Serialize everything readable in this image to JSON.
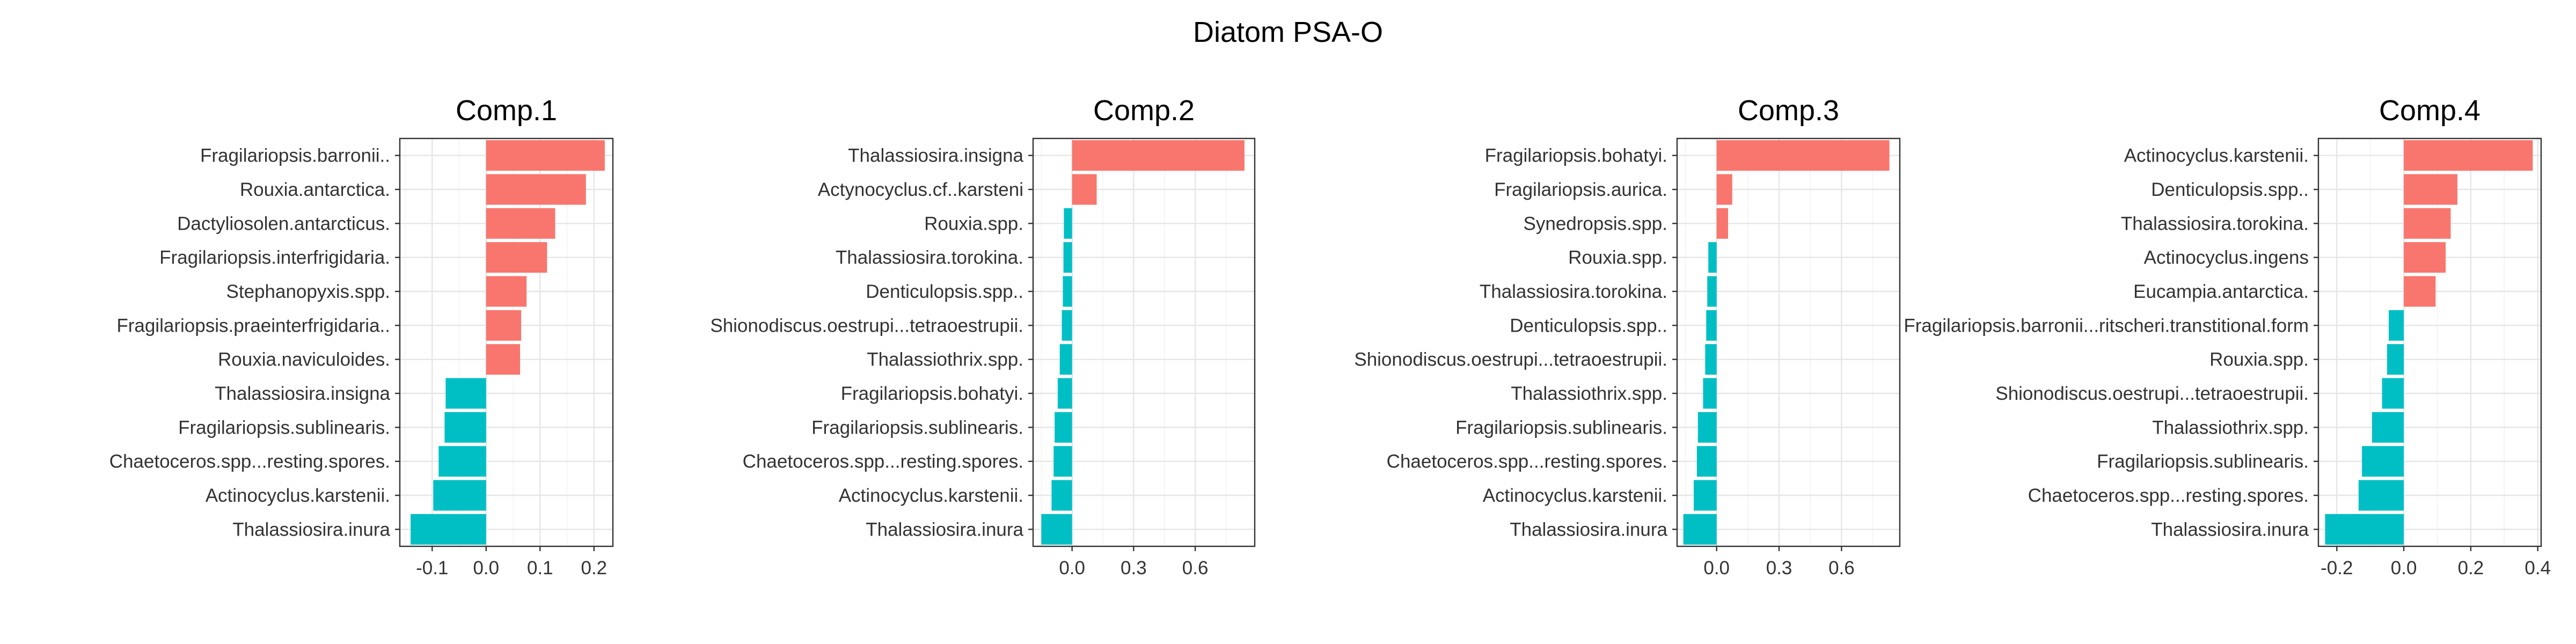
{
  "figure": {
    "title": "Diatom PSA-O",
    "positive_color": "#F8766D",
    "negative_color": "#00BFC4"
  },
  "chart_data": [
    {
      "type": "bar",
      "orientation": "horizontal",
      "title": "Comp.1",
      "categories": [
        "Fragilariopsis.barronii..",
        "Rouxia.antarctica.",
        "Dactyliosolen.antarcticus.",
        "Fragilariopsis.interfrigidaria.",
        "Stephanopyxis.spp.",
        "Fragilariopsis.praeinterfrigidaria..",
        "Rouxia.naviculoides.",
        "Thalassiosira.insigna",
        "Fragilariopsis.sublinearis.",
        "Chaetoceros.spp...resting.spores.",
        "Actinocyclus.karstenii.",
        "Thalassiosira.inura"
      ],
      "values": [
        0.22,
        0.185,
        0.128,
        0.113,
        0.075,
        0.065,
        0.063,
        -0.075,
        -0.077,
        -0.088,
        -0.098,
        -0.14
      ],
      "xlim": [
        -0.16,
        0.235
      ],
      "ticks": [
        -0.1,
        0.0,
        0.1,
        0.2
      ],
      "tick_labels": [
        "-0.1",
        "0.0",
        "0.1",
        "0.2"
      ],
      "grid": true
    },
    {
      "type": "bar",
      "orientation": "horizontal",
      "title": "Comp.2",
      "categories": [
        "Thalassiosira.insigna",
        "Actynocyclus.cf..karsteni",
        "Rouxia.spp.",
        "Thalassiosira.torokina.",
        "Denticulopsis.spp..",
        "Shionodiscus.oestrupi...tetraoestrupii.",
        "Thalassiothrix.spp.",
        "Fragilariopsis.bohatyi.",
        "Fragilariopsis.sublinearis.",
        "Chaetoceros.spp...resting.spores.",
        "Actinocyclus.karstenii.",
        "Thalassiosira.inura"
      ],
      "values": [
        0.84,
        0.12,
        -0.04,
        -0.042,
        -0.045,
        -0.05,
        -0.06,
        -0.07,
        -0.085,
        -0.09,
        -0.1,
        -0.15
      ],
      "xlim": [
        -0.19,
        0.89
      ],
      "ticks": [
        0.0,
        0.3,
        0.6
      ],
      "tick_labels": [
        "0.0",
        "0.3",
        "0.6"
      ],
      "grid": true
    },
    {
      "type": "bar",
      "orientation": "horizontal",
      "title": "Comp.3",
      "categories": [
        "Fragilariopsis.bohatyi.",
        "Fragilariopsis.aurica.",
        "Synedropsis.spp.",
        "Rouxia.spp.",
        "Thalassiosira.torokina.",
        "Denticulopsis.spp..",
        "Shionodiscus.oestrupi...tetraoestrupii.",
        "Thalassiothrix.spp.",
        "Fragilariopsis.sublinearis.",
        "Chaetoceros.spp...resting.spores.",
        "Actinocyclus.karstenii.",
        "Thalassiosira.inura"
      ],
      "values": [
        0.83,
        0.075,
        0.055,
        -0.04,
        -0.045,
        -0.05,
        -0.055,
        -0.065,
        -0.09,
        -0.095,
        -0.11,
        -0.16
      ],
      "xlim": [
        -0.19,
        0.88
      ],
      "ticks": [
        0.0,
        0.3,
        0.6
      ],
      "tick_labels": [
        "0.0",
        "0.3",
        "0.6"
      ],
      "grid": true
    },
    {
      "type": "bar",
      "orientation": "horizontal",
      "title": "Comp.4",
      "categories": [
        "Actinocyclus.karstenii.",
        "Denticulopsis.spp..",
        "Thalassiosira.torokina.",
        "Actinocyclus.ingens",
        "Eucampia.antarctica.",
        "Fragilariopsis.barronii...ritscheri.transtitional.form",
        "Rouxia.spp.",
        "Shionodiscus.oestrupi...tetraoestrupii.",
        "Thalassiothrix.spp.",
        "Fragilariopsis.sublinearis.",
        "Chaetoceros.spp...resting.spores.",
        "Thalassiosira.inura"
      ],
      "values": [
        0.385,
        0.16,
        0.14,
        0.125,
        0.095,
        -0.045,
        -0.05,
        -0.065,
        -0.095,
        -0.125,
        -0.135,
        -0.235
      ],
      "xlim": [
        -0.255,
        0.41
      ],
      "ticks": [
        -0.2,
        0.0,
        0.2,
        0.4
      ],
      "tick_labels": [
        "-0.2",
        "0.0",
        "0.2",
        "0.4"
      ],
      "grid": true
    }
  ]
}
